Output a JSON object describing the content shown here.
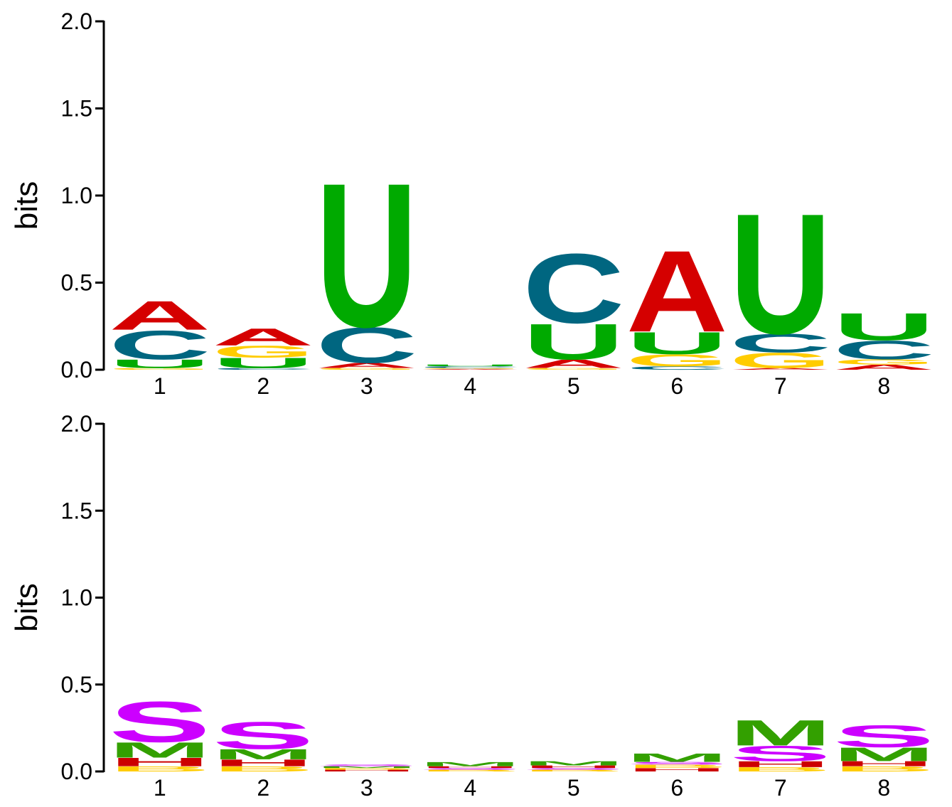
{
  "chart_data": [
    {
      "type": "sequence-logo",
      "ylabel": "bits",
      "ylim": [
        0,
        2.0
      ],
      "yticks": [
        "0.0",
        "0.5",
        "1.0",
        "1.5",
        "2.0"
      ],
      "ytick_values": [
        0,
        0.5,
        1.0,
        1.5,
        2.0
      ],
      "categories": [
        "1",
        "2",
        "3",
        "4",
        "5",
        "6",
        "7",
        "8"
      ],
      "colors": {
        "A": "#d50000",
        "C": "#006680",
        "G": "#ffcc00",
        "U": "#00aa00"
      },
      "positions": [
        {
          "letters": [
            {
              "l": "G",
              "v": 0.01
            },
            {
              "l": "U",
              "v": 0.05
            },
            {
              "l": "C",
              "v": 0.17
            },
            {
              "l": "A",
              "v": 0.17
            }
          ]
        },
        {
          "letters": [
            {
              "l": "C",
              "v": 0.01
            },
            {
              "l": "U",
              "v": 0.06
            },
            {
              "l": "G",
              "v": 0.07
            },
            {
              "l": "A",
              "v": 0.1
            }
          ]
        },
        {
          "letters": [
            {
              "l": "G",
              "v": 0.01
            },
            {
              "l": "A",
              "v": 0.03
            },
            {
              "l": "C",
              "v": 0.21
            },
            {
              "l": "U",
              "v": 0.85
            }
          ]
        },
        {
          "letters": [
            {
              "l": "A",
              "v": 0.005
            },
            {
              "l": "G",
              "v": 0.005
            },
            {
              "l": "C",
              "v": 0.01
            },
            {
              "l": "U",
              "v": 0.01
            }
          ]
        },
        {
          "letters": [
            {
              "l": "G",
              "v": 0.01
            },
            {
              "l": "A",
              "v": 0.05
            },
            {
              "l": "U",
              "v": 0.21
            },
            {
              "l": "C",
              "v": 0.41
            }
          ]
        },
        {
          "letters": [
            {
              "l": "C",
              "v": 0.02
            },
            {
              "l": "G",
              "v": 0.07
            },
            {
              "l": "U",
              "v": 0.13
            },
            {
              "l": "A",
              "v": 0.48
            }
          ]
        },
        {
          "letters": [
            {
              "l": "A",
              "v": 0.01
            },
            {
              "l": "G",
              "v": 0.09
            },
            {
              "l": "C",
              "v": 0.11
            },
            {
              "l": "U",
              "v": 0.71
            }
          ]
        },
        {
          "letters": [
            {
              "l": "A",
              "v": 0.03
            },
            {
              "l": "G",
              "v": 0.03
            },
            {
              "l": "C",
              "v": 0.11
            },
            {
              "l": "U",
              "v": 0.16
            }
          ]
        }
      ]
    },
    {
      "type": "sequence-logo",
      "ylabel": "bits",
      "ylim": [
        0,
        2.0
      ],
      "yticks": [
        "0.0",
        "0.5",
        "1.0",
        "1.5",
        "2.0"
      ],
      "ytick_values": [
        0,
        0.5,
        1.0,
        1.5,
        2.0
      ],
      "categories": [
        "1",
        "2",
        "3",
        "4",
        "5",
        "6",
        "7",
        "8"
      ],
      "colors": {
        "S": "#cc00ff",
        "M": "#33a000",
        "H": "#cc0000",
        "B": "#ffcc00"
      },
      "positions": [
        {
          "letters": [
            {
              "l": "B",
              "v": 0.03
            },
            {
              "l": "H",
              "v": 0.05
            },
            {
              "l": "M",
              "v": 0.09
            },
            {
              "l": "S",
              "v": 0.24
            }
          ]
        },
        {
          "letters": [
            {
              "l": "B",
              "v": 0.03
            },
            {
              "l": "H",
              "v": 0.04
            },
            {
              "l": "M",
              "v": 0.06
            },
            {
              "l": "S",
              "v": 0.16
            }
          ]
        },
        {
          "letters": [
            {
              "l": "H",
              "v": 0.01
            },
            {
              "l": "B",
              "v": 0.01
            },
            {
              "l": "M",
              "v": 0.01
            },
            {
              "l": "S",
              "v": 0.01
            }
          ]
        },
        {
          "letters": [
            {
              "l": "B",
              "v": 0.01
            },
            {
              "l": "S",
              "v": 0.01
            },
            {
              "l": "H",
              "v": 0.01
            },
            {
              "l": "M",
              "v": 0.025
            }
          ]
        },
        {
          "letters": [
            {
              "l": "B",
              "v": 0.01
            },
            {
              "l": "S",
              "v": 0.01
            },
            {
              "l": "H",
              "v": 0.015
            },
            {
              "l": "M",
              "v": 0.025
            }
          ]
        },
        {
          "letters": [
            {
              "l": "H",
              "v": 0.02
            },
            {
              "l": "B",
              "v": 0.02
            },
            {
              "l": "S",
              "v": 0.015
            },
            {
              "l": "M",
              "v": 0.05
            }
          ]
        },
        {
          "letters": [
            {
              "l": "B",
              "v": 0.025
            },
            {
              "l": "H",
              "v": 0.035
            },
            {
              "l": "S",
              "v": 0.09
            },
            {
              "l": "M",
              "v": 0.15
            }
          ]
        },
        {
          "letters": [
            {
              "l": "B",
              "v": 0.03
            },
            {
              "l": "H",
              "v": 0.03
            },
            {
              "l": "M",
              "v": 0.08
            },
            {
              "l": "S",
              "v": 0.13
            }
          ]
        }
      ]
    }
  ]
}
